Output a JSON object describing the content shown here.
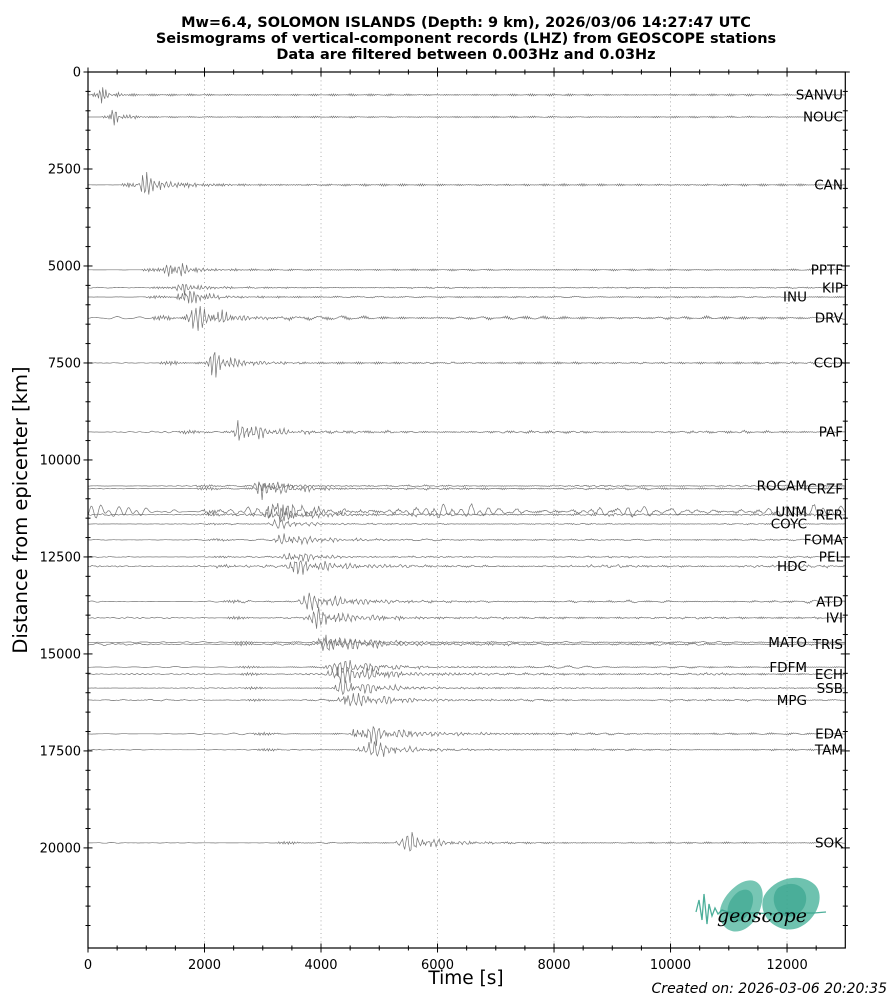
{
  "figure": {
    "title_line1": "Mw=6.4, SOLOMON ISLANDS (Depth: 9 km), 2026/03/06 14:27:47 UTC",
    "title_line2": "Seismograms of vertical-component records (LHZ) from GEOSCOPE stations",
    "title_line3": "Data are filtered between 0.003Hz and 0.03Hz",
    "xlabel": "Time [s]",
    "ylabel": "Distance from epicenter [km]",
    "created": "Created on: 2026-03-06 20:20:35",
    "logo_text": "geoscope"
  },
  "colors": {
    "trace": "#757575",
    "grid": "#9a9a9a",
    "text": "#000000",
    "logo_teal": "#4ab39b",
    "logo_teal_dark": "#2e9e86",
    "logo_text": "#2d3274",
    "background": "#ffffff"
  },
  "chart_data": {
    "type": "line",
    "variant": "seismic-record-section",
    "title": "Mw=6.4, SOLOMON ISLANDS (Depth: 9 km), 2026/03/06 14:27:47 UTC",
    "subtitle": "Seismograms of vertical-component records (LHZ) from GEOSCOPE stations — Data are filtered between 0.003Hz and 0.03Hz",
    "xlabel": "Time [s]",
    "ylabel": "Distance from epicenter [km]",
    "xlim": [
      0,
      13000
    ],
    "ylim": [
      0,
      22580
    ],
    "y_direction": "down",
    "xticks": [
      0,
      2000,
      4000,
      6000,
      8000,
      10000,
      12000
    ],
    "yticks": [
      0,
      2500,
      5000,
      7500,
      10000,
      12500,
      15000,
      17500,
      20000
    ],
    "x_minor_step": 500,
    "y_minor_step": 500,
    "grid": "vertical dotted gridlines at major x ticks only",
    "tick_style": "inout on all four sides",
    "legend": "station codes labeled at right end of each trace",
    "stations": [
      {
        "name": "SANVU",
        "distance_km": 590,
        "label_column": "right",
        "p_arrival_s": 40,
        "surface_arrival_s": 150,
        "rise_s": 60,
        "decay_s": 130,
        "period_s": 55,
        "amplitude": 13,
        "noise": 0.22
      },
      {
        "name": "NOUC",
        "distance_km": 1160,
        "label_column": "right",
        "p_arrival_s": 230,
        "surface_arrival_s": 370,
        "rise_s": 65,
        "decay_s": 150,
        "period_s": 60,
        "amplitude": 10.5,
        "noise": 0.22
      },
      {
        "name": "CAN",
        "distance_km": 2910,
        "label_column": "right",
        "p_arrival_s": 560,
        "surface_arrival_s": 800,
        "rise_s": 90,
        "decay_s": 420,
        "period_s": 68,
        "amplitude": 14,
        "noise": 0.3
      },
      {
        "name": "PPTF",
        "distance_km": 5100,
        "label_column": "right",
        "p_arrival_s": 930,
        "surface_arrival_s": 1290,
        "rise_s": 110,
        "decay_s": 300,
        "period_s": 70,
        "amplitude": 11,
        "noise": 0.35
      },
      {
        "name": "KIP",
        "distance_km": 5560,
        "label_column": "right",
        "p_arrival_s": 1060,
        "surface_arrival_s": 1430,
        "rise_s": 130,
        "decay_s": 330,
        "period_s": 65,
        "amplitude": 7,
        "noise": 0.5
      },
      {
        "name": "INU",
        "distance_km": 5800,
        "label_column": "left",
        "p_arrival_s": 1000,
        "surface_arrival_s": 1500,
        "rise_s": 120,
        "decay_s": 380,
        "period_s": 68,
        "amplitude": 9,
        "noise": 0.55
      },
      {
        "name": "DRV",
        "distance_km": 6340,
        "label_column": "right",
        "p_arrival_s": 1080,
        "surface_arrival_s": 1660,
        "rise_s": 140,
        "decay_s": 430,
        "period_s": 75,
        "amplitude": 16,
        "noise": 1.25
      },
      {
        "name": "CCD",
        "distance_km": 7500,
        "label_column": "right",
        "p_arrival_s": 1240,
        "surface_arrival_s": 2010,
        "rise_s": 150,
        "decay_s": 380,
        "period_s": 72,
        "amplitude": 13,
        "noise": 0.55
      },
      {
        "name": "PAF",
        "distance_km": 9280,
        "label_column": "right",
        "p_arrival_s": 1560,
        "surface_arrival_s": 2450,
        "rise_s": 150,
        "decay_s": 450,
        "period_s": 80,
        "amplitude": 12,
        "noise": 1.0
      },
      {
        "name": "ROCAM",
        "distance_km": 10670,
        "label_column": "left",
        "p_arrival_s": 1850,
        "surface_arrival_s": 2790,
        "rise_s": 170,
        "decay_s": 450,
        "period_s": 78,
        "amplitude": 6,
        "noise": 0.75
      },
      {
        "name": "CRZF",
        "distance_km": 10740,
        "label_column": "right",
        "p_arrival_s": 1860,
        "surface_arrival_s": 2820,
        "rise_s": 170,
        "decay_s": 500,
        "period_s": 82,
        "amplitude": 10,
        "noise": 0.85
      },
      {
        "name": "UNM",
        "distance_km": 11330,
        "label_column": "left",
        "p_arrival_s": 1950,
        "surface_arrival_s": 2970,
        "rise_s": 180,
        "decay_s": 550,
        "period_s": 88,
        "amplitude": 12,
        "noise": 5.8
      },
      {
        "name": "RER",
        "distance_km": 11410,
        "label_column": "right",
        "p_arrival_s": 1960,
        "surface_arrival_s": 3000,
        "rise_s": 180,
        "decay_s": 650,
        "period_s": 84,
        "amplitude": 9,
        "noise": 1.25
      },
      {
        "name": "COYC",
        "distance_km": 11650,
        "label_column": "left",
        "p_arrival_s": 2000,
        "surface_arrival_s": 3060,
        "rise_s": 190,
        "decay_s": 480,
        "period_s": 105,
        "amplitude": 5,
        "noise": 0.55
      },
      {
        "name": "FOMA",
        "distance_km": 12060,
        "label_column": "right",
        "p_arrival_s": 2060,
        "surface_arrival_s": 3170,
        "rise_s": 190,
        "decay_s": 560,
        "period_s": 88,
        "amplitude": 7,
        "noise": 0.8
      },
      {
        "name": "PEL",
        "distance_km": 12500,
        "label_column": "right",
        "p_arrival_s": 2130,
        "surface_arrival_s": 3290,
        "rise_s": 200,
        "decay_s": 520,
        "period_s": 92,
        "amplitude": 6,
        "noise": 0.65
      },
      {
        "name": "HDC",
        "distance_km": 12740,
        "label_column": "left",
        "p_arrival_s": 2170,
        "surface_arrival_s": 3350,
        "rise_s": 200,
        "decay_s": 800,
        "period_s": 85,
        "amplitude": 8,
        "noise": 1.35
      },
      {
        "name": "ATD",
        "distance_km": 13650,
        "label_column": "right",
        "p_arrival_s": 2320,
        "surface_arrival_s": 3590,
        "rise_s": 210,
        "decay_s": 680,
        "period_s": 88,
        "amplitude": 9,
        "noise": 1.05
      },
      {
        "name": "IVI",
        "distance_km": 14070,
        "label_column": "right",
        "p_arrival_s": 2380,
        "surface_arrival_s": 3700,
        "rise_s": 210,
        "decay_s": 620,
        "period_s": 84,
        "amplitude": 10,
        "noise": 0.85
      },
      {
        "name": "MATO",
        "distance_km": 14700,
        "label_column": "left",
        "p_arrival_s": 2480,
        "surface_arrival_s": 3860,
        "rise_s": 220,
        "decay_s": 680,
        "period_s": 88,
        "amplitude": 7,
        "noise": 0.85
      },
      {
        "name": "TRIS",
        "distance_km": 14750,
        "label_column": "right",
        "p_arrival_s": 2490,
        "surface_arrival_s": 3880,
        "rise_s": 220,
        "decay_s": 780,
        "period_s": 84,
        "amplitude": 9,
        "noise": 1.15
      },
      {
        "name": "FDFM",
        "distance_km": 15340,
        "label_column": "left",
        "p_arrival_s": 2580,
        "surface_arrival_s": 4030,
        "rise_s": 220,
        "decay_s": 730,
        "period_s": 88,
        "amplitude": 8,
        "noise": 1.05
      },
      {
        "name": "ECH",
        "distance_km": 15520,
        "label_column": "right",
        "p_arrival_s": 2610,
        "surface_arrival_s": 4070,
        "rise_s": 230,
        "decay_s": 780,
        "period_s": 84,
        "amplitude": 10,
        "noise": 0.95
      },
      {
        "name": "SSB",
        "distance_km": 15880,
        "label_column": "right",
        "p_arrival_s": 2660,
        "surface_arrival_s": 4170,
        "rise_s": 230,
        "decay_s": 680,
        "period_s": 95,
        "amplitude": 8,
        "noise": 0.55
      },
      {
        "name": "MPG",
        "distance_km": 16190,
        "label_column": "left",
        "p_arrival_s": 2710,
        "surface_arrival_s": 4250,
        "rise_s": 230,
        "decay_s": 730,
        "period_s": 88,
        "amplitude": 8,
        "noise": 0.85
      },
      {
        "name": "EDA",
        "distance_km": 17060,
        "label_column": "right",
        "p_arrival_s": 2840,
        "surface_arrival_s": 4480,
        "rise_s": 240,
        "decay_s": 800,
        "period_s": 88,
        "amplitude": 10,
        "noise": 0.7
      },
      {
        "name": "TAM",
        "distance_km": 17470,
        "label_column": "right",
        "p_arrival_s": 2900,
        "surface_arrival_s": 4590,
        "rise_s": 240,
        "decay_s": 520,
        "period_s": 100,
        "amplitude": 9,
        "noise": 0.5
      },
      {
        "name": "SOK",
        "distance_km": 19870,
        "label_column": "right",
        "p_arrival_s": 3250,
        "surface_arrival_s": 5260,
        "rise_s": 280,
        "decay_s": 420,
        "period_s": 90,
        "amplitude": 10,
        "noise": 0.4
      }
    ]
  }
}
